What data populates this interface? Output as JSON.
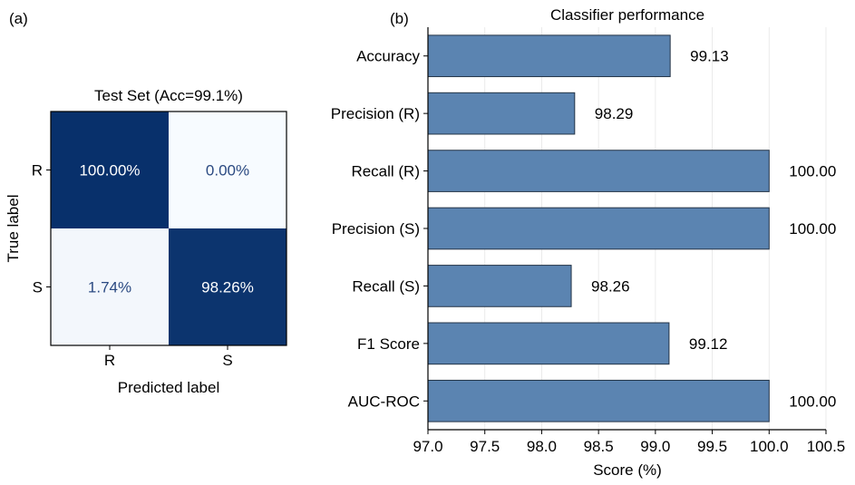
{
  "panels": {
    "a_label": "(a)",
    "b_label": "(b)"
  },
  "colors": {
    "cm_dark": "#08306b",
    "cm_light": "#f7fbff",
    "cm_text_on_dark": "#ffffff",
    "cm_text_on_light": "#2b4a82",
    "bar_fill": "#5b84b1",
    "bar_edge": "#243447",
    "axis": "#000000",
    "grid": "#e6e6e6"
  },
  "chart_data": [
    {
      "type": "heatmap",
      "title": "Test Set (Acc=99.1%)",
      "xlabel": "Predicted label",
      "ylabel": "True label",
      "x_categories": [
        "R",
        "S"
      ],
      "y_categories": [
        "R",
        "S"
      ],
      "values": [
        [
          100.0,
          0.0
        ],
        [
          1.74,
          98.26
        ]
      ],
      "cell_labels": [
        [
          "100.00%",
          "0.00%"
        ],
        [
          "1.74%",
          "98.26%"
        ]
      ],
      "vlim": [
        0,
        100
      ]
    },
    {
      "type": "bar",
      "orientation": "horizontal",
      "title": "Classifier performance",
      "xlabel": "Score (%)",
      "ylabel": "",
      "categories": [
        "Accuracy",
        "Precision (R)",
        "Recall (R)",
        "Precision (S)",
        "Recall (S)",
        "F1 Score",
        "AUC-ROC"
      ],
      "values": [
        99.13,
        98.29,
        100.0,
        100.0,
        98.26,
        99.12,
        100.0
      ],
      "value_labels": [
        "99.13",
        "98.29",
        "100.00",
        "100.00",
        "98.26",
        "99.12",
        "100.00"
      ],
      "xlim": [
        97.0,
        100.5
      ],
      "xticks": [
        97.0,
        97.5,
        98.0,
        98.5,
        99.0,
        99.5,
        100.0,
        100.5
      ],
      "xtick_labels": [
        "97.0",
        "97.5",
        "98.0",
        "98.5",
        "99.0",
        "99.5",
        "100.0",
        "100.5"
      ],
      "grid": "vertical"
    }
  ]
}
